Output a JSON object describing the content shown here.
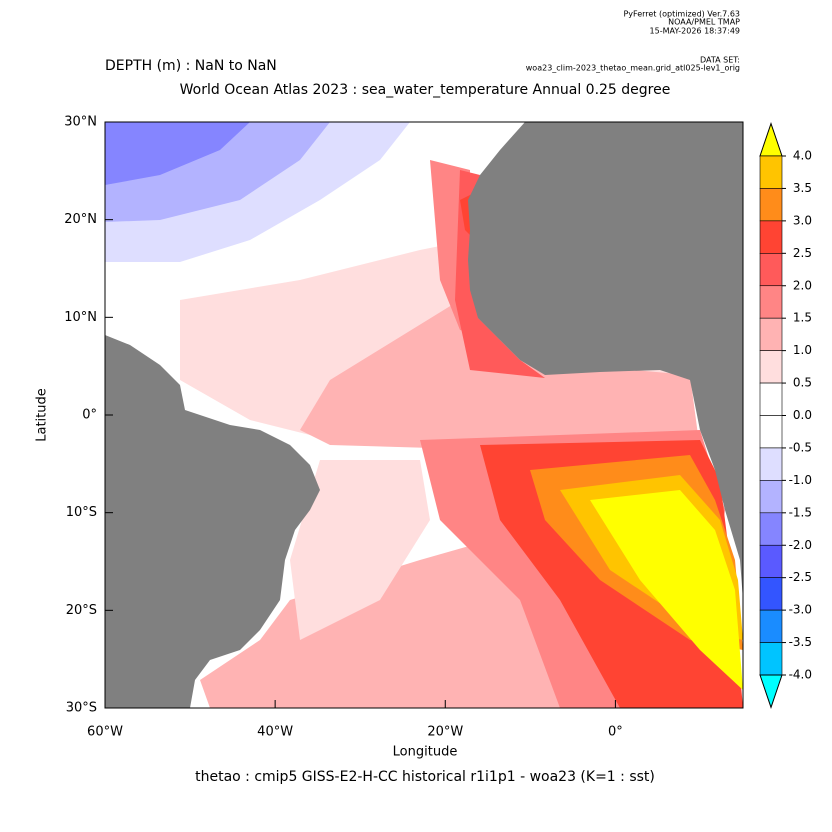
{
  "header": {
    "software": "PyFerret (optimized) Ver.7.63",
    "org": "NOAA/PMEL TMAP",
    "timestamp": "15-MAY-2026 18:37:49",
    "dataset_label": "DATA SET:",
    "dataset": "woa23_clim-2023_thetao_mean.grid_atl025-lev1_orig"
  },
  "title": {
    "depth": "DEPTH (m) : NaN to NaN",
    "main": "World Ocean Atlas 2023 : sea_water_temperature Annual  0.25 degree"
  },
  "map": {
    "xlabel": "Longitude",
    "ylabel": "Latitude",
    "xlim": [
      -60,
      15
    ],
    "ylim": [
      -30,
      30
    ],
    "xticks": [
      {
        "value": -60,
        "label": "60°W"
      },
      {
        "value": -40,
        "label": "40°W"
      },
      {
        "value": -20,
        "label": "20°W"
      },
      {
        "value": 0,
        "label": "0°"
      }
    ],
    "yticks": [
      {
        "value": 30,
        "label": "30°N"
      },
      {
        "value": 20,
        "label": "20°N"
      },
      {
        "value": 10,
        "label": "10°N"
      },
      {
        "value": 0,
        "label": "0°"
      },
      {
        "value": -10,
        "label": "10°S"
      },
      {
        "value": -20,
        "label": "20°S"
      },
      {
        "value": -30,
        "label": "30°S"
      }
    ]
  },
  "colorbar": {
    "levels": [
      {
        "value": 4,
        "label": "4.0"
      },
      {
        "value": 3.5,
        "label": "3.5"
      },
      {
        "value": 3,
        "label": "3.0"
      },
      {
        "value": 2.5,
        "label": "2.5"
      },
      {
        "value": 2,
        "label": "2.0"
      },
      {
        "value": 1.5,
        "label": "1.5"
      },
      {
        "value": 1,
        "label": "1.0"
      },
      {
        "value": 0.5,
        "label": "0.5"
      },
      {
        "value": 0,
        "label": "0.0"
      },
      {
        "value": -0.5,
        "label": "-0.5"
      },
      {
        "value": -1,
        "label": "-1.0"
      },
      {
        "value": -1.5,
        "label": "-1.5"
      },
      {
        "value": -2,
        "label": "-2.0"
      },
      {
        "value": -2.5,
        "label": "-2.5"
      },
      {
        "value": -3,
        "label": "-3.0"
      },
      {
        "value": -3.5,
        "label": "-3.5"
      },
      {
        "value": -4,
        "label": "-4.0"
      }
    ],
    "colors": [
      "#ffff00",
      "#ffc400",
      "#ff8c1a",
      "#ff4433",
      "#ff5a5a",
      "#ff8585",
      "#ffb3b3",
      "#ffdede",
      "#ffffff",
      "#ffffff",
      "#dedeff",
      "#b3b3ff",
      "#8585ff",
      "#5a5aff",
      "#3355ff",
      "#1a8cff",
      "#00c4ff",
      "#00ffff"
    ]
  },
  "footer": "thetao : cmip5 GISS-E2-H-CC historical r1i1p1 - woa23  (K=1 : sst)"
}
